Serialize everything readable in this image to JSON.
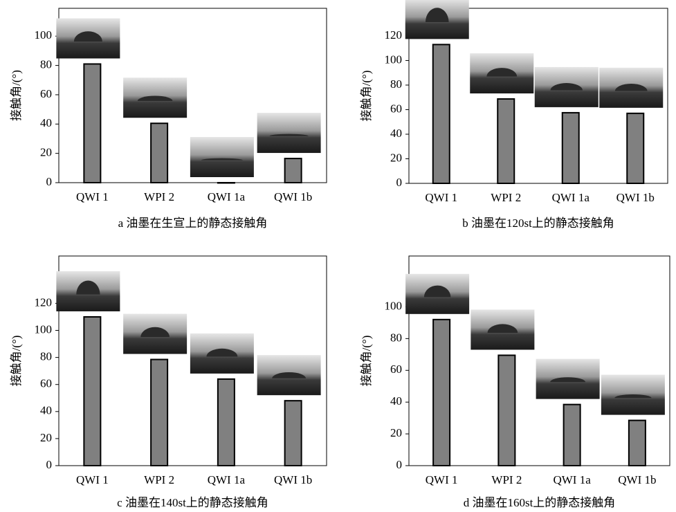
{
  "chart_data": [
    {
      "type": "bar",
      "caption": "a 油墨在生宣上的静态接触角",
      "y_label": "接触角/(°)",
      "categories": [
        "QWI 1",
        "WPI 2",
        "QWI 1a",
        "QWI 1b"
      ],
      "values": [
        81,
        40.5,
        0,
        16.5
      ],
      "color": "#808080",
      "ylim": [
        0,
        119
      ],
      "yticks": [
        0,
        20,
        40,
        60,
        80,
        100
      ]
    },
    {
      "type": "bar",
      "caption": "b 油墨在120st上的静态接触角",
      "y_label": "接触角/(°)",
      "categories": [
        "QWI 1",
        "WPI 2",
        "QWI 1a",
        "QWI 1b"
      ],
      "values": [
        113,
        68.7,
        57.5,
        57
      ],
      "color": "#808080",
      "ylim": [
        0,
        142.5
      ],
      "yticks": [
        0,
        20,
        40,
        60,
        80,
        100,
        120
      ]
    },
    {
      "type": "bar",
      "caption": "c 油墨在140st上的静态接触角",
      "y_label": "接触角/(°)",
      "categories": [
        "QWI 1",
        "WPI 2",
        "QWI 1a",
        "QWI 1b"
      ],
      "values": [
        110,
        78.5,
        64,
        48
      ],
      "color": "#808080",
      "ylim": [
        0,
        155
      ],
      "yticks": [
        0,
        20,
        40,
        60,
        80,
        100,
        120
      ]
    },
    {
      "type": "bar",
      "caption": "d 油墨在160st上的静态接触角",
      "y_label": "接触角/(°)",
      "categories": [
        "QWI 1",
        "WPI 2",
        "QWI 1a",
        "QWI 1b"
      ],
      "values": [
        92,
        69.5,
        38.5,
        28.5
      ],
      "color": "#808080",
      "ylim": [
        0,
        132
      ],
      "yticks": [
        0,
        20,
        40,
        60,
        80,
        100
      ]
    }
  ]
}
